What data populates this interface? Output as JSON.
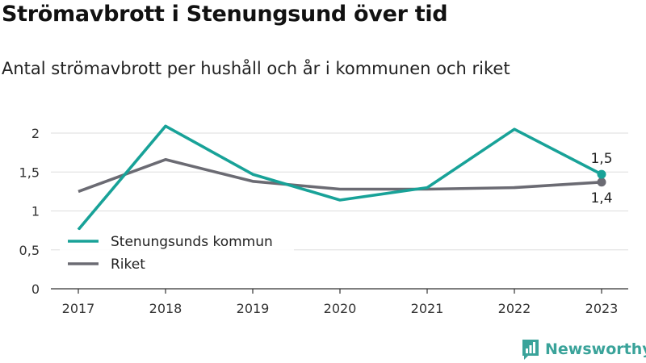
{
  "header": {
    "title": "Strömavbrott i Stenungsund över tid",
    "subtitle": "Antal strömavbrott per hushåll och år i kommunen och riket"
  },
  "brand": {
    "name": "Newsworthy",
    "color": "#3aa39a",
    "icon": "newsworthy-logo-icon"
  },
  "chart_data": {
    "type": "line",
    "title": "Strömavbrott i Stenungsund över tid",
    "subtitle": "Antal strömavbrott per hushåll och år i kommunen och riket",
    "xlabel": "",
    "ylabel": "",
    "categories": [
      "2017",
      "2018",
      "2019",
      "2020",
      "2021",
      "2022",
      "2023"
    ],
    "ylim": [
      0,
      2
    ],
    "yticks": [
      0,
      0.5,
      1,
      1.5,
      2
    ],
    "ytick_labels": [
      "0",
      "0,5",
      "1",
      "1,5",
      "2"
    ],
    "grid": true,
    "legend_position": "bottom-left",
    "series": [
      {
        "name": "Stenungsunds kommun",
        "color": "#18a298",
        "values": [
          0.76,
          2.09,
          1.47,
          1.14,
          1.3,
          2.05,
          1.47
        ],
        "end_label": "1,5"
      },
      {
        "name": "Riket",
        "color": "#6b6b73",
        "values": [
          1.25,
          1.66,
          1.38,
          1.28,
          1.28,
          1.3,
          1.37
        ],
        "end_label": "1,4"
      }
    ]
  }
}
